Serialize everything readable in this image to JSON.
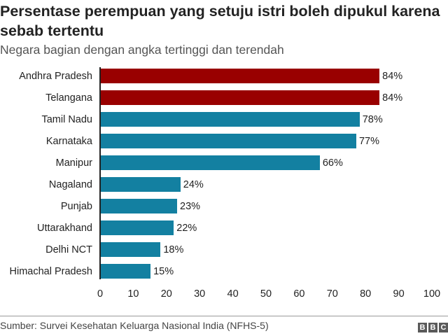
{
  "header": {
    "title": "Persentase perempuan yang setuju istri boleh dipukul karena sebab tertentu",
    "subtitle": "Negara bagian dengan angka tertinggi dan terendah"
  },
  "footer": {
    "source": "Sumber: Survei Kesehatan Keluarga Nasional India (NFHS-5)",
    "logo": [
      "B",
      "B",
      "C"
    ]
  },
  "colors": {
    "highlight": "#990000",
    "default": "#1380A1"
  },
  "chart_data": {
    "type": "bar",
    "orientation": "horizontal",
    "title": "Persentase perempuan yang setuju istri boleh dipukul karena sebab tertentu",
    "subtitle": "Negara bagian dengan angka tertinggi dan terendah",
    "categories": [
      "Andhra Pradesh",
      "Telangana",
      "Tamil Nadu",
      "Karnataka",
      "Manipur",
      "Nagaland",
      "Punjab",
      "Uttarakhand",
      "Delhi NCT",
      "Himachal Pradesh"
    ],
    "values": [
      84,
      84,
      78,
      77,
      66,
      24,
      23,
      22,
      18,
      15
    ],
    "value_labels": [
      "84%",
      "84%",
      "78%",
      "77%",
      "66%",
      "24%",
      "23%",
      "22%",
      "18%",
      "15%"
    ],
    "bar_colors": [
      "#990000",
      "#990000",
      "#1380A1",
      "#1380A1",
      "#1380A1",
      "#1380A1",
      "#1380A1",
      "#1380A1",
      "#1380A1",
      "#1380A1"
    ],
    "xticks": [
      "0",
      "10",
      "20",
      "30",
      "40",
      "50",
      "60",
      "70",
      "80",
      "90",
      "100"
    ],
    "xlim": [
      0,
      100
    ],
    "xlabel": "",
    "ylabel": "",
    "grid": false,
    "source": "Sumber: Survei Kesehatan Keluarga Nasional India (NFHS-5)"
  }
}
